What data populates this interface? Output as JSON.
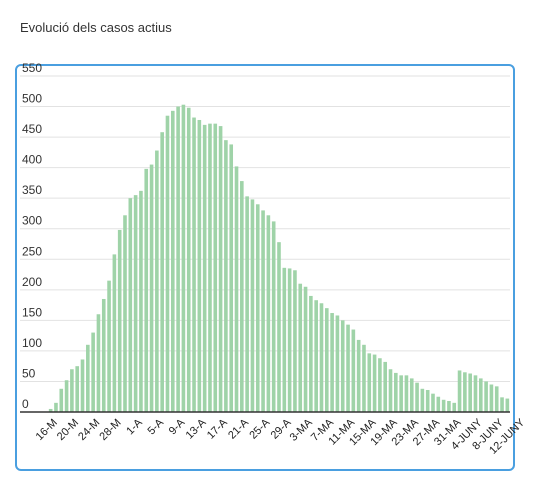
{
  "header": {
    "title": "Evolució dels casos actius"
  },
  "chart_data": {
    "type": "bar",
    "title": "Evolució dels casos actius",
    "xlabel": "",
    "ylabel": "",
    "ylim": [
      0,
      550
    ],
    "yticks": [
      0,
      50,
      100,
      150,
      200,
      250,
      300,
      350,
      400,
      450,
      500,
      550
    ],
    "grid": true,
    "bar_color": "#9fd3a8",
    "tick_labels": [
      "16-M",
      "20-M",
      "24-M",
      "28-M",
      "1-A",
      "5-A",
      "9-A",
      "13-A",
      "17-A",
      "21-A",
      "25-A",
      "29-A",
      "3-MA",
      "7-MA",
      "11-MA",
      "15-MA",
      "19-MA",
      "23-MA",
      "27-MA",
      "31-MA",
      "4-JUNY",
      "8-JUNY",
      "12-JUNY"
    ],
    "values": [
      5,
      15,
      38,
      52,
      70,
      75,
      86,
      110,
      130,
      160,
      185,
      215,
      258,
      298,
      322,
      350,
      355,
      362,
      398,
      405,
      428,
      458,
      485,
      493,
      500,
      503,
      498,
      482,
      478,
      470,
      472,
      472,
      468,
      445,
      438,
      402,
      378,
      353,
      348,
      340,
      330,
      322,
      312,
      278,
      236,
      235,
      232,
      210,
      205,
      190,
      183,
      178,
      170,
      162,
      158,
      150,
      143,
      135,
      118,
      110,
      96,
      94,
      88,
      82,
      70,
      64,
      60,
      60,
      55,
      48,
      38,
      36,
      30,
      25,
      20,
      18,
      15,
      68,
      65,
      63,
      60,
      55,
      50,
      45,
      42,
      24,
      22
    ]
  }
}
